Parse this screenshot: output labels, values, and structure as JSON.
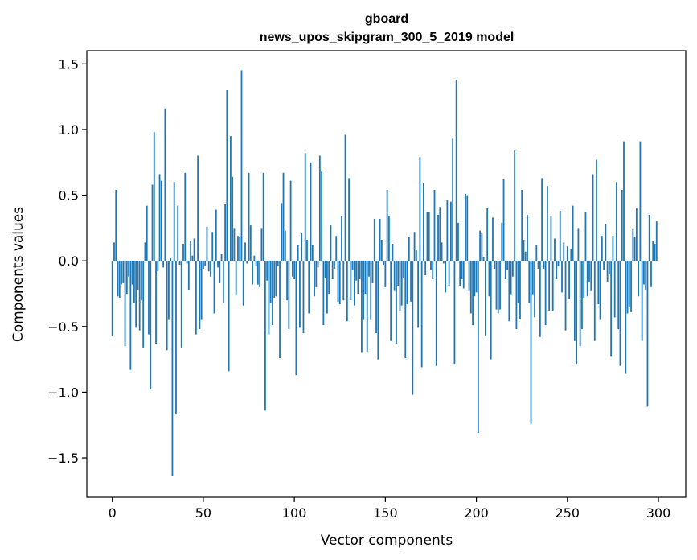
{
  "chart_data": {
    "type": "bar",
    "title_line1": "gboard",
    "title_line2": "news_upos_skipgram_300_5_2019 model",
    "xlabel": "Vector components",
    "ylabel": "Components values",
    "xlim": [
      -14,
      315
    ],
    "ylim": [
      -1.8,
      1.6
    ],
    "xticks": [
      0,
      50,
      100,
      150,
      200,
      250,
      300
    ],
    "xtick_labels": [
      "0",
      "50",
      "100",
      "150",
      "200",
      "250",
      "300"
    ],
    "yticks": [
      -1.5,
      -1.0,
      -0.5,
      0.0,
      0.5,
      1.0,
      1.5
    ],
    "ytick_labels": [
      "−1.5",
      "−1.0",
      "−0.5",
      "0.0",
      "0.5",
      "1.0",
      "1.5"
    ],
    "bar_color": "#1f77b4",
    "values": [
      -0.57,
      0.14,
      0.54,
      -0.27,
      -0.28,
      -0.18,
      -0.17,
      -0.65,
      -0.25,
      -0.12,
      -0.83,
      -0.18,
      -0.32,
      -0.51,
      -0.22,
      -0.53,
      -0.3,
      -0.66,
      0.14,
      0.42,
      -0.56,
      -0.98,
      0.58,
      0.98,
      -0.63,
      -0.08,
      0.66,
      0.61,
      -0.05,
      1.16,
      -0.68,
      -0.45,
      0.02,
      -1.64,
      0.6,
      -1.17,
      0.42,
      -0.03,
      -0.66,
      0.13,
      0.67,
      -0.02,
      -0.22,
      0.15,
      0.04,
      0.17,
      -0.56,
      0.8,
      -0.52,
      -0.45,
      -0.06,
      -0.04,
      0.26,
      -0.08,
      -0.12,
      0.22,
      -0.4,
      0.39,
      -0.05,
      -0.17,
      0.05,
      -0.32,
      0.43,
      1.3,
      -0.84,
      0.95,
      0.64,
      0.25,
      -0.26,
      0.19,
      0.18,
      1.45,
      -0.34,
      0.14,
      -0.02,
      0.67,
      0.27,
      -0.18,
      0.04,
      -0.04,
      -0.18,
      -0.2,
      0.25,
      0.67,
      -1.14,
      -0.15,
      -0.56,
      -0.32,
      -0.49,
      -0.28,
      -0.27,
      -0.04,
      -0.74,
      0.44,
      0.67,
      0.23,
      -0.3,
      -0.52,
      0.61,
      -0.12,
      -0.14,
      -0.87,
      0.12,
      -0.51,
      0.21,
      -0.55,
      0.82,
      0.16,
      -0.4,
      0.75,
      0.12,
      -0.27,
      -0.2,
      -0.05,
      0.8,
      0.68,
      -0.49,
      -0.13,
      -0.4,
      -0.25,
      0.27,
      -0.14,
      -0.06,
      0.19,
      -0.31,
      -0.33,
      0.34,
      -0.3,
      0.96,
      -0.46,
      0.63,
      -0.3,
      -0.07,
      -0.34,
      -0.15,
      -0.25,
      -0.14,
      -0.7,
      -0.45,
      -0.25,
      -0.69,
      -0.12,
      -0.45,
      -0.17,
      0.32,
      -0.55,
      -0.75,
      0.32,
      0.16,
      -0.03,
      -0.2,
      0.54,
      0.34,
      -0.61,
      0.13,
      -0.23,
      -0.63,
      -0.19,
      -0.38,
      -0.34,
      -0.13,
      -0.74,
      -0.33,
      0.18,
      -0.31,
      -1.02,
      0.22,
      0.08,
      -0.51,
      0.79,
      -0.81,
      0.59,
      -0.11,
      0.37,
      0.37,
      -0.07,
      -0.14,
      0.54,
      -0.8,
      0.35,
      0.41,
      0.14,
      -0.02,
      -0.24,
      0.46,
      -0.19,
      0.45,
      0.93,
      -0.79,
      1.38,
      0.29,
      -0.19,
      -0.14,
      -0.21,
      0.51,
      0.5,
      -0.23,
      -0.4,
      -0.49,
      -0.27,
      -0.24,
      -1.31,
      0.23,
      0.21,
      0.03,
      -0.57,
      0.4,
      -0.27,
      -0.75,
      0.33,
      -0.06,
      -0.37,
      -0.4,
      -0.37,
      0.29,
      0.62,
      -0.14,
      -0.07,
      -0.46,
      -0.26,
      -0.12,
      0.84,
      -0.52,
      -0.32,
      -0.44,
      0.54,
      0.16,
      0.07,
      0.35,
      -0.32,
      -1.24,
      -0.26,
      -0.43,
      0.12,
      -0.06,
      -0.58,
      0.63,
      -0.06,
      -0.49,
      0.57,
      -0.38,
      0.34,
      -0.38,
      0.17,
      -0.14,
      -0.04,
      0.38,
      -0.24,
      0.14,
      -0.53,
      0.11,
      -0.29,
      0.09,
      0.42,
      -0.61,
      -0.79,
      0.25,
      -0.65,
      -0.52,
      -0.28,
      0.37,
      -0.27,
      -0.16,
      -0.23,
      0.66,
      -0.61,
      0.77,
      -0.33,
      -0.45,
      0.19,
      -0.07,
      0.28,
      -0.16,
      -0.1,
      -0.73,
      0.19,
      -0.43,
      0.6,
      -0.52,
      -0.8,
      0.54,
      0.91,
      -0.86,
      -0.4,
      -0.35,
      -0.39,
      0.24,
      0.18,
      0.4,
      -0.27,
      0.91,
      -0.61,
      -0.18,
      -0.22,
      -1.11,
      0.35,
      -0.2,
      0.15,
      0.13,
      0.3
    ]
  }
}
